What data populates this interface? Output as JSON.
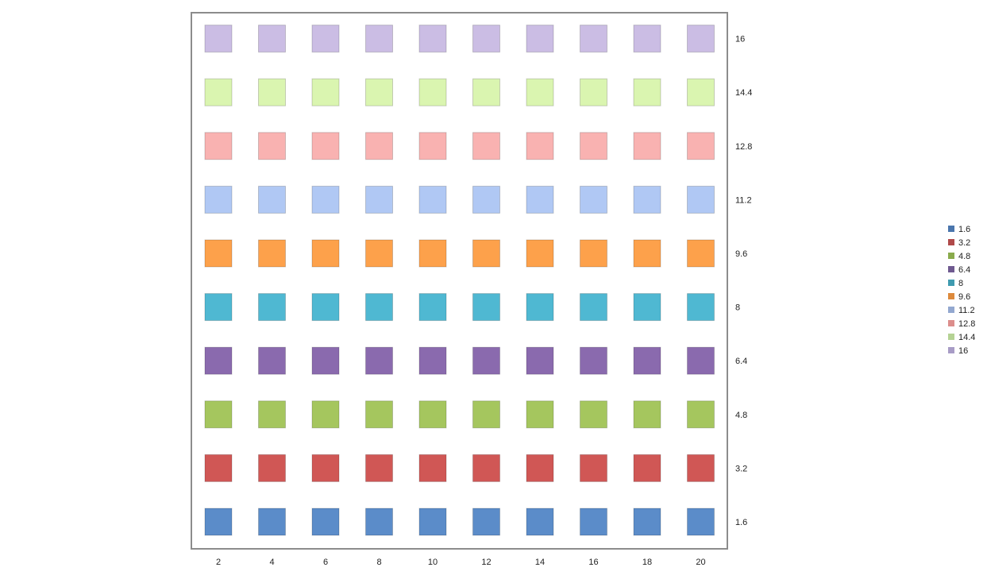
{
  "chart_data": {
    "type": "heatmap",
    "title": "",
    "xlabel": "",
    "ylabel": "",
    "x": [
      2,
      4,
      6,
      8,
      10,
      12,
      14,
      16,
      18,
      20
    ],
    "x_tick_labels": [
      "2",
      "4",
      "6",
      "8",
      "10",
      "12",
      "14",
      "16",
      "18",
      "20"
    ],
    "y": [
      1.6,
      3.2,
      4.8,
      6.4,
      8,
      9.6,
      11.2,
      12.8,
      14.4,
      16
    ],
    "y_tick_labels": [
      "1.6",
      "3.2",
      "4.8",
      "6.4",
      "8",
      "9.6",
      "11.2",
      "12.8",
      "14.4",
      "16"
    ],
    "y_axis_side": "right",
    "grid": false,
    "legend_position": "right",
    "series": [
      {
        "name": "1.6",
        "value": 1.6,
        "color": "#5b8cc9",
        "legend_color": "#4a76ad"
      },
      {
        "name": "3.2",
        "value": 3.2,
        "color": "#d05755",
        "legend_color": "#b04a4a"
      },
      {
        "name": "4.8",
        "value": 4.8,
        "color": "#a5c65e",
        "legend_color": "#8aab4c"
      },
      {
        "name": "6.4",
        "value": 6.4,
        "color": "#8a6aae",
        "legend_color": "#6f5a90"
      },
      {
        "name": "8",
        "value": 8,
        "color": "#4fb8d2",
        "legend_color": "#3f9bb0"
      },
      {
        "name": "9.6",
        "value": 9.6,
        "color": "#fda14b",
        "legend_color": "#dd8a3c"
      },
      {
        "name": "11.2",
        "value": 11.2,
        "color": "#b0c8f4",
        "legend_color": "#93a8d0"
      },
      {
        "name": "12.8",
        "value": 12.8,
        "color": "#f9b2b1",
        "legend_color": "#dc8e8c"
      },
      {
        "name": "14.4",
        "value": 14.4,
        "color": "#daf5b0",
        "legend_color": "#b5d394"
      },
      {
        "name": "16",
        "value": 16,
        "color": "#cbbde4",
        "legend_color": "#a89cc6"
      }
    ]
  }
}
